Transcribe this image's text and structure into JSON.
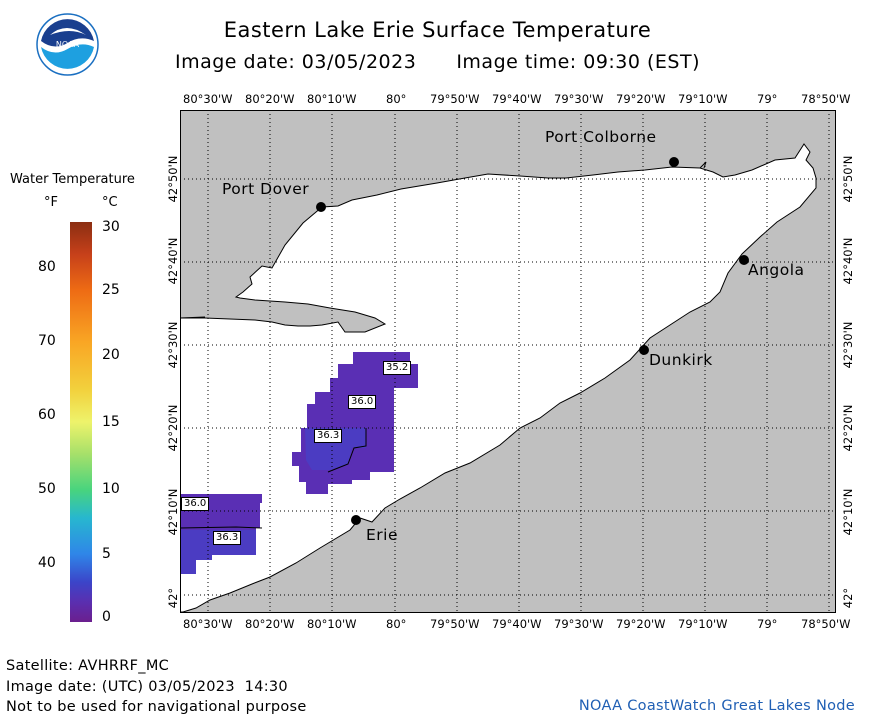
{
  "title": "Eastern Lake Erie Surface Temperature",
  "image_date_label": "Image date: 03/05/2023",
  "image_time_label": "Image time: 09:30 (EST)",
  "logo": {
    "text": "NOAA",
    "icon": "noaa-logo-icon"
  },
  "lon_ticks": [
    "80°30'W",
    "80°20'W",
    "80°10'W",
    "80°",
    "79°50'W",
    "79°40'W",
    "79°30'W",
    "79°20'W",
    "79°10'W",
    "79°",
    "78°50'W"
  ],
  "lat_ticks": [
    "42°",
    "42°10'N",
    "42°20'N",
    "42°30'N",
    "42°40'N",
    "42°50'N"
  ],
  "places": [
    {
      "name": "Port Colborne"
    },
    {
      "name": "Port Dover"
    },
    {
      "name": "Angola"
    },
    {
      "name": "Dunkirk"
    },
    {
      "name": "Erie"
    }
  ],
  "temperature_labels": [
    "35.2",
    "36.0",
    "36.3",
    "36.0",
    "36.3"
  ],
  "legend": {
    "title": "Water Temperature",
    "unit_f": "°F",
    "unit_c": "°C",
    "f_ticks": [
      "80",
      "70",
      "60",
      "50",
      "40"
    ],
    "c_ticks": [
      "30",
      "25",
      "20",
      "15",
      "10",
      "5",
      "0"
    ]
  },
  "footer": {
    "satellite": "Satellite: AVHRRF_MC",
    "utc_date": "Image date: (UTC) 03/05/2023  14:30",
    "disclaimer": "Not to be used for navigational purpose",
    "credit": "NOAA CoastWatch Great Lakes Node"
  },
  "colors": {
    "land": "#c0c0c0",
    "lake": "#ffffff",
    "cold_water": "#5a2fb4",
    "cold_water_2": "#4b3cc2",
    "credit": "#1f5fb4"
  }
}
